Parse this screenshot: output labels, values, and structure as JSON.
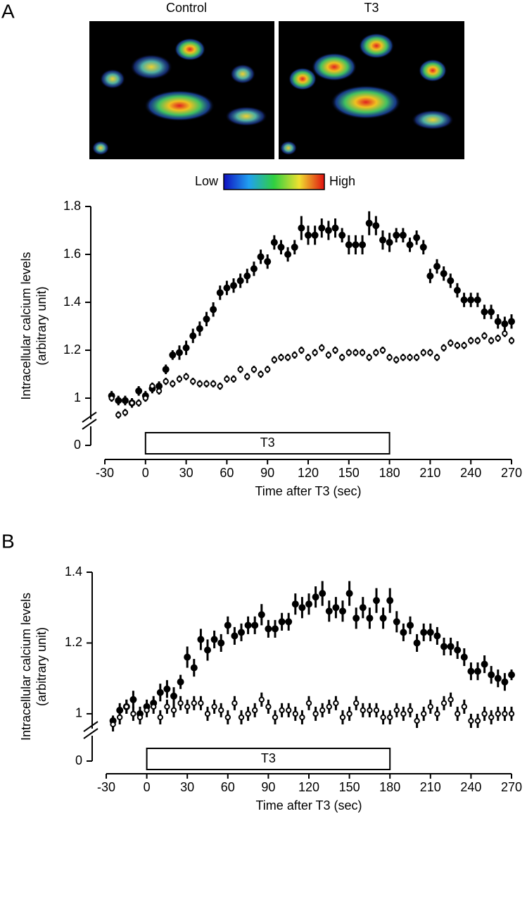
{
  "images": {
    "left_label": "Control",
    "right_label": "T3",
    "colorbar_low": "Low",
    "colorbar_high": "High"
  },
  "chart_data": [
    {
      "type": "scatter",
      "panel_label": "A",
      "xlabel": "Time after T3 (sec)",
      "ylabel": "Intracellular calcium levels",
      "ylabel2": "(arbitrary unit)",
      "axis_break_label": "0",
      "xlim": [
        -30,
        270
      ],
      "xticks": [
        -30,
        0,
        30,
        60,
        90,
        120,
        150,
        180,
        210,
        240,
        270
      ],
      "ylim": [
        0.9,
        1.8
      ],
      "yticks": [
        1.0,
        1.2,
        1.4,
        1.6,
        1.8
      ],
      "treatment": {
        "label": "T3",
        "start": 0,
        "end": 180
      },
      "x": [
        -25,
        -20,
        -15,
        -10,
        -5,
        0,
        5,
        10,
        15,
        20,
        25,
        30,
        35,
        40,
        45,
        50,
        55,
        60,
        65,
        70,
        75,
        80,
        85,
        90,
        95,
        100,
        105,
        110,
        115,
        120,
        125,
        130,
        135,
        140,
        145,
        150,
        155,
        160,
        165,
        170,
        175,
        180,
        185,
        190,
        195,
        200,
        205,
        210,
        215,
        220,
        225,
        230,
        235,
        240,
        245,
        250,
        255,
        260,
        265,
        270
      ],
      "series": [
        {
          "marker": "filled",
          "color": "#000000",
          "values": [
            1.01,
            0.99,
            0.99,
            0.98,
            1.03,
            1.01,
            1.04,
            1.05,
            1.12,
            1.18,
            1.19,
            1.21,
            1.26,
            1.29,
            1.33,
            1.37,
            1.44,
            1.46,
            1.47,
            1.49,
            1.51,
            1.54,
            1.59,
            1.57,
            1.65,
            1.63,
            1.6,
            1.63,
            1.71,
            1.68,
            1.68,
            1.71,
            1.7,
            1.71,
            1.68,
            1.64,
            1.64,
            1.64,
            1.73,
            1.72,
            1.66,
            1.65,
            1.68,
            1.68,
            1.64,
            1.67,
            1.63,
            1.51,
            1.55,
            1.52,
            1.49,
            1.45,
            1.41,
            1.41,
            1.41,
            1.36,
            1.36,
            1.32,
            1.31,
            1.32
          ],
          "errors": [
            0.02,
            0.02,
            0.02,
            0.02,
            0.02,
            0.02,
            0.02,
            0.02,
            0.02,
            0.02,
            0.03,
            0.03,
            0.03,
            0.03,
            0.03,
            0.03,
            0.03,
            0.03,
            0.03,
            0.03,
            0.03,
            0.03,
            0.03,
            0.03,
            0.03,
            0.03,
            0.03,
            0.03,
            0.05,
            0.04,
            0.04,
            0.04,
            0.04,
            0.04,
            0.03,
            0.04,
            0.04,
            0.04,
            0.05,
            0.04,
            0.04,
            0.04,
            0.03,
            0.03,
            0.03,
            0.03,
            0.03,
            0.03,
            0.03,
            0.03,
            0.03,
            0.03,
            0.03,
            0.03,
            0.03,
            0.03,
            0.03,
            0.03,
            0.03,
            0.03
          ]
        },
        {
          "marker": "open",
          "color": "#000000",
          "values": [
            1.0,
            0.93,
            0.94,
            0.98,
            0.98,
            1.0,
            1.05,
            1.03,
            1.07,
            1.06,
            1.08,
            1.09,
            1.07,
            1.06,
            1.06,
            1.06,
            1.05,
            1.08,
            1.08,
            1.12,
            1.09,
            1.12,
            1.1,
            1.12,
            1.16,
            1.17,
            1.17,
            1.18,
            1.2,
            1.17,
            1.19,
            1.21,
            1.18,
            1.2,
            1.17,
            1.19,
            1.19,
            1.19,
            1.17,
            1.19,
            1.2,
            1.17,
            1.16,
            1.17,
            1.17,
            1.17,
            1.19,
            1.19,
            1.17,
            1.21,
            1.23,
            1.22,
            1.22,
            1.24,
            1.24,
            1.26,
            1.24,
            1.25,
            1.27,
            1.24
          ],
          "errors": [
            0.015,
            0.015,
            0.015,
            0.015,
            0.015,
            0.015,
            0.015,
            0.015,
            0.015,
            0.015,
            0.015,
            0.015,
            0.015,
            0.015,
            0.015,
            0.015,
            0.015,
            0.015,
            0.015,
            0.015,
            0.015,
            0.015,
            0.015,
            0.015,
            0.015,
            0.015,
            0.015,
            0.015,
            0.015,
            0.015,
            0.015,
            0.015,
            0.015,
            0.015,
            0.015,
            0.015,
            0.015,
            0.015,
            0.015,
            0.015,
            0.015,
            0.015,
            0.015,
            0.015,
            0.015,
            0.015,
            0.015,
            0.015,
            0.015,
            0.015,
            0.015,
            0.015,
            0.015,
            0.015,
            0.015,
            0.015,
            0.015,
            0.015,
            0.015,
            0.015
          ]
        }
      ]
    },
    {
      "type": "scatter",
      "panel_label": "B",
      "xlabel": "Time after T3 (sec)",
      "ylabel": "Intracellular calcium levels",
      "ylabel2": "(arbitrary unit)",
      "axis_break_label": "0",
      "xlim": [
        -30,
        270
      ],
      "xticks": [
        -30,
        0,
        30,
        60,
        90,
        120,
        150,
        180,
        210,
        240,
        270
      ],
      "ylim": [
        0.95,
        1.4
      ],
      "yticks": [
        1.0,
        1.2,
        1.4
      ],
      "treatment": {
        "label": "T3",
        "start": 0,
        "end": 180
      },
      "x": [
        -25,
        -20,
        -15,
        -10,
        -5,
        0,
        5,
        10,
        15,
        20,
        25,
        30,
        35,
        40,
        45,
        50,
        55,
        60,
        65,
        70,
        75,
        80,
        85,
        90,
        95,
        100,
        105,
        110,
        115,
        120,
        125,
        130,
        135,
        140,
        145,
        150,
        155,
        160,
        165,
        170,
        175,
        180,
        185,
        190,
        195,
        200,
        205,
        210,
        215,
        220,
        225,
        230,
        235,
        240,
        245,
        250,
        255,
        260,
        265,
        270
      ],
      "series": [
        {
          "marker": "filled",
          "color": "#000000",
          "values": [
            0.98,
            1.01,
            1.02,
            1.04,
            1.0,
            1.02,
            1.03,
            1.06,
            1.07,
            1.05,
            1.09,
            1.16,
            1.13,
            1.21,
            1.18,
            1.21,
            1.2,
            1.25,
            1.22,
            1.23,
            1.25,
            1.25,
            1.28,
            1.24,
            1.24,
            1.26,
            1.26,
            1.31,
            1.3,
            1.31,
            1.33,
            1.34,
            1.29,
            1.3,
            1.29,
            1.34,
            1.27,
            1.3,
            1.27,
            1.32,
            1.27,
            1.32,
            1.26,
            1.23,
            1.25,
            1.2,
            1.23,
            1.23,
            1.22,
            1.19,
            1.19,
            1.18,
            1.16,
            1.12,
            1.12,
            1.14,
            1.11,
            1.1,
            1.09,
            1.11
          ],
          "errors": [
            0.015,
            0.02,
            0.02,
            0.025,
            0.02,
            0.02,
            0.02,
            0.025,
            0.025,
            0.025,
            0.02,
            0.03,
            0.025,
            0.03,
            0.03,
            0.025,
            0.025,
            0.025,
            0.025,
            0.025,
            0.025,
            0.025,
            0.03,
            0.025,
            0.025,
            0.025,
            0.025,
            0.03,
            0.03,
            0.03,
            0.03,
            0.035,
            0.03,
            0.03,
            0.03,
            0.035,
            0.03,
            0.03,
            0.03,
            0.035,
            0.03,
            0.035,
            0.03,
            0.025,
            0.025,
            0.025,
            0.025,
            0.025,
            0.025,
            0.025,
            0.025,
            0.025,
            0.025,
            0.025,
            0.025,
            0.025,
            0.025,
            0.025,
            0.025,
            0.015
          ]
        },
        {
          "marker": "open",
          "color": "#000000",
          "values": [
            0.97,
            0.99,
            1.02,
            1.0,
            0.99,
            1.01,
            1.02,
            0.99,
            1.02,
            1.01,
            1.03,
            1.02,
            1.03,
            1.03,
            1.0,
            1.02,
            1.01,
            0.99,
            1.03,
            0.99,
            1.0,
            1.01,
            1.04,
            1.02,
            0.99,
            1.01,
            1.01,
            1.0,
            0.99,
            1.03,
            1.0,
            1.01,
            1.02,
            1.03,
            0.99,
            1.0,
            1.03,
            1.01,
            1.01,
            1.01,
            0.99,
            0.99,
            1.01,
            1.0,
            1.01,
            0.98,
            1.0,
            1.02,
            1.0,
            1.03,
            1.04,
            1.0,
            1.02,
            0.98,
            0.98,
            1.0,
            0.99,
            1.0,
            1.0,
            1.0
          ],
          "errors": [
            0.02,
            0.02,
            0.02,
            0.02,
            0.02,
            0.02,
            0.02,
            0.02,
            0.02,
            0.02,
            0.02,
            0.02,
            0.02,
            0.02,
            0.02,
            0.02,
            0.02,
            0.02,
            0.02,
            0.02,
            0.02,
            0.02,
            0.02,
            0.02,
            0.02,
            0.02,
            0.02,
            0.02,
            0.02,
            0.02,
            0.02,
            0.02,
            0.02,
            0.02,
            0.02,
            0.02,
            0.02,
            0.02,
            0.02,
            0.02,
            0.02,
            0.02,
            0.02,
            0.02,
            0.02,
            0.02,
            0.02,
            0.02,
            0.02,
            0.02,
            0.02,
            0.02,
            0.02,
            0.02,
            0.02,
            0.02,
            0.02,
            0.02,
            0.02,
            0.02
          ]
        }
      ]
    }
  ]
}
